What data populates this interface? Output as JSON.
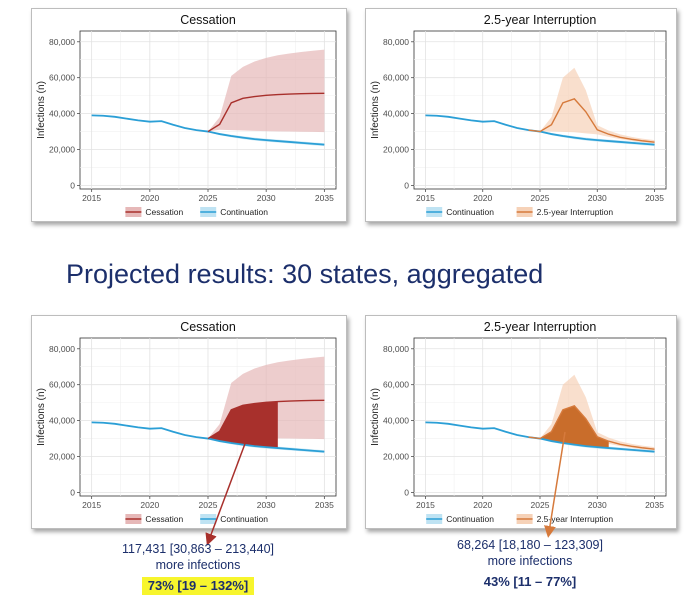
{
  "headline": "Projected results: 30 states, aggregated",
  "colors": {
    "continuation": "#2b9fd6",
    "cessation": "#a8302c",
    "cessation_band": "#e6b8b8",
    "interruption": "#d67a3c",
    "interruption_band": "#f6d2b8",
    "shade_cessation": "#a8302c",
    "shade_interruption": "#c96d2b"
  },
  "annotations": [
    {
      "range": "117,431 [30,863 – 213,440]",
      "text": "more infections",
      "pct": "73% [19 – 132%]"
    },
    {
      "range": "68,264 [18,180 – 123,309]",
      "text": "more infections",
      "pct": "43% [11 – 77%]"
    }
  ],
  "chart_data": [
    {
      "type": "line",
      "title": "Cessation",
      "ylabel": "Infections (n)",
      "xlim": [
        2014,
        2036
      ],
      "ylim": [
        -2000,
        86000
      ],
      "xticks": [
        "2015",
        "2020",
        "2025",
        "2030",
        "2035"
      ],
      "yticks": [
        "0",
        "20,000",
        "40,000",
        "60,000",
        "80,000"
      ],
      "legend": [
        "Cessation",
        "Continuation"
      ],
      "legend_position": "bottom",
      "grid": true,
      "series": [
        {
          "name": "Continuation",
          "x": [
            2015,
            2016,
            2017,
            2018,
            2019,
            2020,
            2021,
            2022,
            2023,
            2024,
            2025,
            2026,
            2027,
            2028,
            2029,
            2030,
            2031,
            2032,
            2033,
            2034,
            2035
          ],
          "values": [
            39000,
            38800,
            38200,
            37200,
            36200,
            35500,
            35800,
            33800,
            32000,
            30800,
            30000,
            28600,
            27500,
            26600,
            25800,
            25200,
            24700,
            24200,
            23700,
            23200,
            22700
          ],
          "band_low": [
            39000,
            38800,
            38200,
            37200,
            36200,
            35500,
            35800,
            33800,
            32000,
            30800,
            30000,
            28000,
            26800,
            25800,
            25000,
            24400,
            23900,
            23400,
            22900,
            22400,
            21900
          ],
          "band_high": [
            39000,
            38800,
            38200,
            37200,
            36200,
            35500,
            35800,
            33800,
            32000,
            30800,
            30000,
            29200,
            28200,
            27400,
            26600,
            26000,
            25500,
            25000,
            24500,
            24000,
            23500
          ]
        },
        {
          "name": "Cessation",
          "x": [
            2025,
            2026,
            2027,
            2028,
            2029,
            2030,
            2031,
            2032,
            2033,
            2034,
            2035
          ],
          "values": [
            30000,
            34000,
            46000,
            48500,
            49500,
            50200,
            50600,
            50900,
            51100,
            51200,
            51300
          ],
          "band_low": [
            30000,
            31000,
            30800,
            30600,
            30400,
            30200,
            30100,
            30000,
            29900,
            29800,
            29700
          ],
          "band_high": [
            30000,
            38000,
            61000,
            66000,
            69000,
            71000,
            72500,
            73500,
            74300,
            75000,
            75600
          ]
        }
      ]
    },
    {
      "type": "line",
      "title": "2.5-year Interruption",
      "ylabel": "Infections (n)",
      "xlim": [
        2014,
        2036
      ],
      "ylim": [
        -2000,
        86000
      ],
      "xticks": [
        "2015",
        "2020",
        "2025",
        "2030",
        "2035"
      ],
      "yticks": [
        "0",
        "20,000",
        "40,000",
        "60,000",
        "80,000"
      ],
      "legend": [
        "Continuation",
        "2.5-year Interruption"
      ],
      "legend_position": "bottom",
      "grid": true,
      "series": [
        {
          "name": "Continuation",
          "x": [
            2015,
            2016,
            2017,
            2018,
            2019,
            2020,
            2021,
            2022,
            2023,
            2024,
            2025,
            2026,
            2027,
            2028,
            2029,
            2030,
            2031,
            2032,
            2033,
            2034,
            2035
          ],
          "values": [
            39000,
            38800,
            38200,
            37200,
            36200,
            35500,
            35800,
            33800,
            32000,
            30800,
            30000,
            28600,
            27500,
            26600,
            25800,
            25200,
            24700,
            24200,
            23700,
            23200,
            22700
          ],
          "band_low": [
            39000,
            38800,
            38200,
            37200,
            36200,
            35500,
            35800,
            33800,
            32000,
            30800,
            30000,
            28000,
            26800,
            25800,
            25000,
            24400,
            23900,
            23400,
            22900,
            22400,
            21900
          ],
          "band_high": [
            39000,
            38800,
            38200,
            37200,
            36200,
            35500,
            35800,
            33800,
            32000,
            30800,
            30000,
            29200,
            28200,
            27400,
            26600,
            26000,
            25500,
            25000,
            24500,
            24000,
            23500
          ]
        },
        {
          "name": "2.5-year Interruption",
          "x": [
            2024,
            2025,
            2026,
            2027,
            2028,
            2029,
            2030,
            2031,
            2032,
            2033,
            2034,
            2035
          ],
          "values": [
            30800,
            30000,
            33800,
            46000,
            48200,
            41000,
            31000,
            28500,
            26800,
            25700,
            24800,
            24100
          ],
          "band_low": [
            30800,
            30000,
            30000,
            29800,
            29600,
            29000,
            28400,
            27000,
            25800,
            24800,
            24000,
            23400
          ],
          "band_high": [
            30800,
            30000,
            38000,
            60000,
            65500,
            53000,
            33500,
            30500,
            28400,
            27000,
            26000,
            25200
          ]
        }
      ]
    },
    {
      "type": "line",
      "title": "Cessation",
      "ylabel": "Infections (n)",
      "xlim": [
        2014,
        2036
      ],
      "ylim": [
        -2000,
        86000
      ],
      "xticks": [
        "2015",
        "2020",
        "2025",
        "2030",
        "2035"
      ],
      "yticks": [
        "0",
        "20,000",
        "40,000",
        "60,000",
        "80,000"
      ],
      "legend": [
        "Cessation",
        "Continuation"
      ],
      "legend_position": "bottom",
      "grid": true,
      "shaded_difference": {
        "from": 2025,
        "to": 2031
      },
      "series": [
        {
          "name": "Continuation",
          "x": [
            2015,
            2016,
            2017,
            2018,
            2019,
            2020,
            2021,
            2022,
            2023,
            2024,
            2025,
            2026,
            2027,
            2028,
            2029,
            2030,
            2031,
            2032,
            2033,
            2034,
            2035
          ],
          "values": [
            39000,
            38800,
            38200,
            37200,
            36200,
            35500,
            35800,
            33800,
            32000,
            30800,
            30000,
            28600,
            27500,
            26600,
            25800,
            25200,
            24700,
            24200,
            23700,
            23200,
            22700
          ],
          "band_low": [
            39000,
            38800,
            38200,
            37200,
            36200,
            35500,
            35800,
            33800,
            32000,
            30800,
            30000,
            28000,
            26800,
            25800,
            25000,
            24400,
            23900,
            23400,
            22900,
            22400,
            21900
          ],
          "band_high": [
            39000,
            38800,
            38200,
            37200,
            36200,
            35500,
            35800,
            33800,
            32000,
            30800,
            30000,
            29200,
            28200,
            27400,
            26600,
            26000,
            25500,
            25000,
            24500,
            24000,
            23500
          ]
        },
        {
          "name": "Cessation",
          "x": [
            2025,
            2026,
            2027,
            2028,
            2029,
            2030,
            2031,
            2032,
            2033,
            2034,
            2035
          ],
          "values": [
            30000,
            34000,
            46000,
            48500,
            49500,
            50200,
            50600,
            50900,
            51100,
            51200,
            51300
          ],
          "band_low": [
            30000,
            31000,
            30800,
            30600,
            30400,
            30200,
            30100,
            30000,
            29900,
            29800,
            29700
          ],
          "band_high": [
            30000,
            38000,
            61000,
            66000,
            69000,
            71000,
            72500,
            73500,
            74300,
            75000,
            75600
          ]
        }
      ]
    },
    {
      "type": "line",
      "title": "2.5-year Interruption",
      "ylabel": "Infections (n)",
      "xlim": [
        2014,
        2036
      ],
      "ylim": [
        -2000,
        86000
      ],
      "xticks": [
        "2015",
        "2020",
        "2025",
        "2030",
        "2035"
      ],
      "yticks": [
        "0",
        "20,000",
        "40,000",
        "60,000",
        "80,000"
      ],
      "legend": [
        "Continuation",
        "2.5-year Interruption"
      ],
      "legend_position": "bottom",
      "grid": true,
      "shaded_difference": {
        "from": 2025,
        "to": 2031
      },
      "series": [
        {
          "name": "Continuation",
          "x": [
            2015,
            2016,
            2017,
            2018,
            2019,
            2020,
            2021,
            2022,
            2023,
            2024,
            2025,
            2026,
            2027,
            2028,
            2029,
            2030,
            2031,
            2032,
            2033,
            2034,
            2035
          ],
          "values": [
            39000,
            38800,
            38200,
            37200,
            36200,
            35500,
            35800,
            33800,
            32000,
            30800,
            30000,
            28600,
            27500,
            26600,
            25800,
            25200,
            24700,
            24200,
            23700,
            23200,
            22700
          ],
          "band_low": [
            39000,
            38800,
            38200,
            37200,
            36200,
            35500,
            35800,
            33800,
            32000,
            30800,
            30000,
            28000,
            26800,
            25800,
            25000,
            24400,
            23900,
            23400,
            22900,
            22400,
            21900
          ],
          "band_high": [
            39000,
            38800,
            38200,
            37200,
            36200,
            35500,
            35800,
            33800,
            32000,
            30800,
            30000,
            29200,
            28200,
            27400,
            26600,
            26000,
            25500,
            25000,
            24500,
            24000,
            23500
          ]
        },
        {
          "name": "2.5-year Interruption",
          "x": [
            2024,
            2025,
            2026,
            2027,
            2028,
            2029,
            2030,
            2031,
            2032,
            2033,
            2034,
            2035
          ],
          "values": [
            30800,
            30000,
            33800,
            46000,
            48200,
            41000,
            31000,
            28500,
            26800,
            25700,
            24800,
            24100
          ],
          "band_low": [
            30800,
            30000,
            30000,
            29800,
            29600,
            29000,
            28400,
            27000,
            25800,
            24800,
            24000,
            23400
          ],
          "band_high": [
            30800,
            30000,
            38000,
            60000,
            65500,
            53000,
            33500,
            30500,
            28400,
            27000,
            26000,
            25200
          ]
        }
      ]
    }
  ]
}
